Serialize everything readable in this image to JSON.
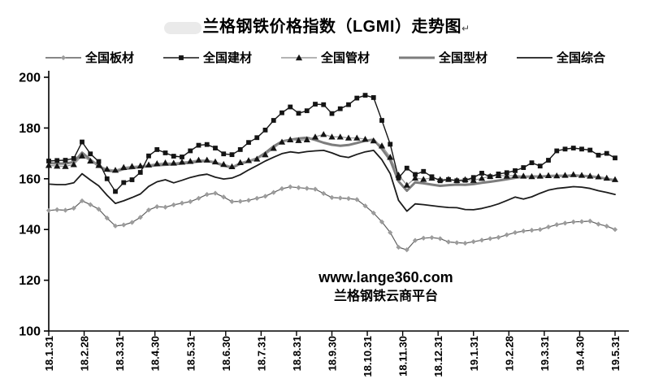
{
  "title": "兰格钢铁价格指数（LGMI）走势图",
  "title_mark": "↵",
  "watermark": {
    "line1": "www.lange360.com",
    "line2": "兰格钢铁云商平台"
  },
  "chart_data": {
    "type": "line",
    "title": "兰格钢铁价格指数（LGMI）走势图",
    "x_frequency": "weekly",
    "x_labels": [
      "18.1.31",
      "18.2.28",
      "18.3.31",
      "18.4.30",
      "18.5.31",
      "18.6.30",
      "18.7.31",
      "18.8.31",
      "18.9.30",
      "18.10.31",
      "18.11.30",
      "18.12.31",
      "19.1.31",
      "19.2.28",
      "19.3.31",
      "19.4.30",
      "19.5.31"
    ],
    "x_tick_rotation": 90,
    "ylim": [
      100,
      200
    ],
    "y_ticks": [
      100,
      120,
      140,
      160,
      180,
      200
    ],
    "grid": false,
    "legend_position": "top",
    "series": [
      {
        "name": "全国板材",
        "marker": "diamond",
        "color": "#5f5f5f",
        "marker_color": "#9c9c9c",
        "line_width": 1.2,
        "values": [
          147.5,
          147.8,
          147.6,
          148.4,
          151.3,
          149.8,
          148.0,
          144.5,
          141.4,
          141.8,
          142.8,
          144.8,
          147.7,
          149.0,
          148.8,
          149.7,
          150.4,
          151.0,
          152.3,
          153.8,
          154.3,
          152.8,
          151.0,
          151.1,
          151.5,
          152.3,
          153.1,
          154.6,
          156.1,
          156.8,
          156.5,
          156.2,
          155.9,
          154.2,
          152.6,
          152.4,
          152.2,
          151.8,
          149.3,
          146.5,
          143.0,
          138.8,
          133.0,
          132.0,
          135.7,
          136.6,
          136.8,
          136.4,
          135.1,
          134.8,
          134.6,
          135.2,
          135.8,
          136.4,
          136.9,
          137.9,
          138.8,
          139.4,
          139.7,
          140.0,
          141.0,
          141.9,
          142.5,
          143.0,
          143.1,
          143.3,
          142.1,
          141.3,
          140.0
        ]
      },
      {
        "name": "全国建材",
        "marker": "square",
        "color": "#141414",
        "marker_color": "#141414",
        "line_width": 1.4,
        "values": [
          167.0,
          167.2,
          167.3,
          168.0,
          174.5,
          169.8,
          166.8,
          160.0,
          155.0,
          158.5,
          159.6,
          162.5,
          169.0,
          171.5,
          170.2,
          168.9,
          168.6,
          171.0,
          173.2,
          173.5,
          172.1,
          169.8,
          169.5,
          171.5,
          174.3,
          176.2,
          179.2,
          183.0,
          186.0,
          188.3,
          185.8,
          186.8,
          189.4,
          189.2,
          185.7,
          187.6,
          189.2,
          191.8,
          192.9,
          192.0,
          183.0,
          173.6,
          160.3,
          164.2,
          161.7,
          162.9,
          160.8,
          159.2,
          159.7,
          159.2,
          159.4,
          160.5,
          162.2,
          160.8,
          161.9,
          162.4,
          163.2,
          164.4,
          166.3,
          165.0,
          167.3,
          171.0,
          171.7,
          172.1,
          171.7,
          171.3,
          169.3,
          170.0,
          168.2
        ]
      },
      {
        "name": "全国管材",
        "marker": "triangle",
        "color": "#9a9a9a",
        "marker_color": "#141414",
        "line_width": 1.3,
        "values": [
          165.3,
          165.0,
          164.9,
          165.6,
          169.0,
          167.0,
          165.3,
          163.8,
          163.4,
          164.5,
          164.9,
          165.1,
          165.5,
          166.0,
          166.3,
          166.2,
          166.6,
          166.9,
          167.4,
          167.4,
          166.7,
          165.7,
          164.8,
          166.4,
          167.2,
          167.8,
          169.5,
          172.0,
          174.5,
          175.4,
          175.1,
          175.4,
          176.5,
          177.5,
          176.5,
          176.5,
          176.1,
          176.1,
          175.6,
          175.0,
          173.0,
          168.5,
          161.5,
          157.5,
          160.3,
          159.8,
          160.3,
          159.7,
          159.8,
          159.4,
          159.7,
          159.4,
          160.2,
          161.0,
          161.3,
          161.1,
          161.3,
          161.1,
          160.9,
          161.1,
          161.3,
          161.2,
          161.4,
          161.7,
          161.4,
          161.1,
          160.8,
          160.3,
          159.7
        ]
      },
      {
        "name": "全国型材",
        "marker": "none",
        "color": "#7d7d7d",
        "marker_color": "#7d7d7d",
        "line_width": 3.0,
        "values": [
          166.2,
          166.0,
          166.0,
          166.6,
          170.3,
          167.5,
          165.0,
          163.2,
          162.9,
          163.8,
          164.2,
          164.6,
          165.0,
          165.3,
          165.5,
          165.7,
          166.0,
          166.4,
          166.8,
          167.1,
          166.3,
          165.2,
          164.4,
          165.9,
          166.9,
          168.0,
          170.2,
          172.8,
          174.7,
          175.4,
          175.9,
          176.2,
          175.3,
          174.2,
          173.4,
          173.0,
          173.3,
          174.1,
          175.0,
          175.4,
          171.8,
          167.3,
          159.0,
          155.3,
          158.6,
          158.2,
          157.7,
          157.2,
          157.5,
          157.7,
          157.6,
          157.9,
          158.4,
          158.8,
          159.3,
          159.8,
          160.4,
          160.8,
          160.9,
          160.9,
          161.1,
          161.2,
          161.2,
          161.3,
          161.2,
          161.0,
          160.6,
          160.0,
          159.4
        ]
      },
      {
        "name": "全国综合",
        "marker": "none",
        "color": "#1c1c1c",
        "marker_color": "#1c1c1c",
        "line_width": 1.8,
        "values": [
          157.9,
          157.7,
          157.7,
          158.4,
          162.0,
          159.5,
          157.2,
          153.5,
          150.3,
          151.3,
          152.6,
          154.0,
          157.0,
          158.8,
          159.6,
          158.4,
          159.4,
          160.5,
          161.3,
          161.8,
          160.6,
          159.9,
          160.3,
          161.6,
          163.5,
          165.2,
          167.0,
          168.5,
          169.9,
          170.6,
          170.2,
          170.7,
          171.0,
          171.2,
          170.2,
          168.9,
          168.4,
          169.6,
          170.6,
          171.2,
          167.5,
          162.0,
          151.5,
          147.2,
          150.1,
          149.8,
          149.4,
          149.0,
          148.7,
          148.6,
          147.9,
          147.8,
          148.3,
          149.1,
          150.1,
          151.4,
          152.8,
          152.0,
          152.9,
          154.3,
          155.5,
          156.2,
          156.5,
          156.9,
          156.7,
          156.2,
          155.3,
          154.6,
          153.8
        ]
      }
    ]
  }
}
